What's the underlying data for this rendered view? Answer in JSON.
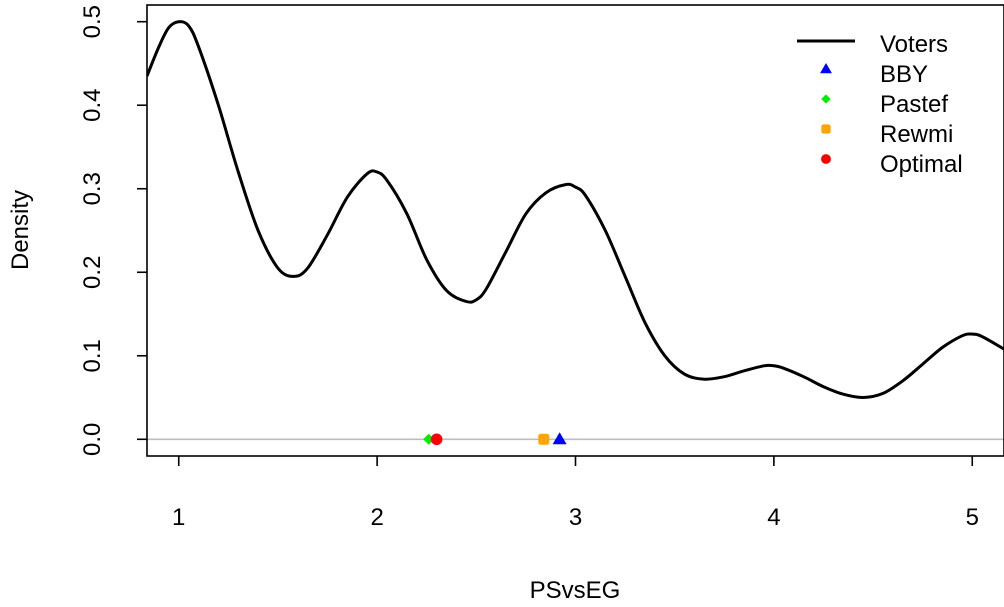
{
  "chart_data": {
    "type": "line",
    "xlabel": "PSvsEG",
    "ylabel": "Density",
    "xlim": [
      0.84,
      5.16
    ],
    "ylim": [
      -0.02,
      0.52
    ],
    "x_ticks": [
      1,
      2,
      3,
      4,
      5
    ],
    "x_tick_labels": [
      "1",
      "2",
      "3",
      "4",
      "5"
    ],
    "y_ticks": [
      0.0,
      0.1,
      0.2,
      0.3,
      0.4,
      0.5
    ],
    "y_tick_labels": [
      "0.0",
      "0.1",
      "0.2",
      "0.3",
      "0.4",
      "0.5"
    ],
    "grid": false,
    "legend_position": "top-right",
    "baseline": {
      "y": 0.0,
      "color": "#bebebe"
    },
    "series": [
      {
        "name": "Voters",
        "kind": "line",
        "color": "#000000",
        "x": [
          0.84,
          0.9,
          0.95,
          1.0,
          1.05,
          1.1,
          1.2,
          1.3,
          1.4,
          1.5,
          1.58,
          1.65,
          1.75,
          1.85,
          1.95,
          2.0,
          2.05,
          2.15,
          2.25,
          2.35,
          2.45,
          2.5,
          2.55,
          2.65,
          2.75,
          2.85,
          2.95,
          3.0,
          3.05,
          3.15,
          3.25,
          3.35,
          3.45,
          3.55,
          3.65,
          3.75,
          3.85,
          3.95,
          4.0,
          4.05,
          4.15,
          4.25,
          4.35,
          4.45,
          4.55,
          4.65,
          4.75,
          4.85,
          4.95,
          5.0,
          5.05,
          5.16
        ],
        "y": [
          0.435,
          0.47,
          0.493,
          0.5,
          0.495,
          0.47,
          0.4,
          0.32,
          0.25,
          0.205,
          0.195,
          0.205,
          0.245,
          0.29,
          0.318,
          0.32,
          0.31,
          0.27,
          0.215,
          0.178,
          0.165,
          0.167,
          0.18,
          0.225,
          0.27,
          0.295,
          0.305,
          0.302,
          0.292,
          0.25,
          0.195,
          0.14,
          0.1,
          0.078,
          0.072,
          0.075,
          0.082,
          0.088,
          0.088,
          0.085,
          0.075,
          0.063,
          0.054,
          0.05,
          0.055,
          0.07,
          0.09,
          0.11,
          0.124,
          0.126,
          0.123,
          0.108
        ]
      },
      {
        "name": "BBY",
        "kind": "point",
        "marker": "triangle",
        "color": "#0000ff",
        "x": 2.92,
        "y": 0.0
      },
      {
        "name": "Pastef",
        "kind": "point",
        "marker": "diamond",
        "color": "#00ee00",
        "x": 2.26,
        "y": 0.0
      },
      {
        "name": "Rewmi",
        "kind": "point",
        "marker": "square",
        "color": "#ffa500",
        "x": 2.84,
        "y": 0.0
      },
      {
        "name": "Optimal",
        "kind": "point",
        "marker": "circle",
        "color": "#ff0000",
        "x": 2.3,
        "y": 0.0
      }
    ]
  }
}
